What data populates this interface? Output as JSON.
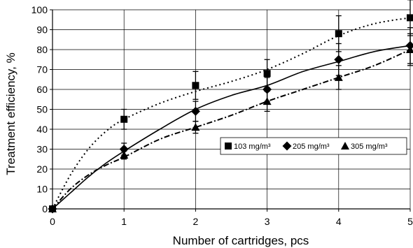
{
  "chart_data": {
    "type": "scatter",
    "title": "",
    "xlabel": "Number of cartridges, pcs",
    "ylabel": "Treatment efficiency, %",
    "xlim": [
      0,
      5
    ],
    "ylim": [
      0,
      100
    ],
    "x_ticks": [
      "0",
      "1",
      "2",
      "3",
      "4",
      "5"
    ],
    "y_ticks": [
      "0",
      "10",
      "20",
      "30",
      "40",
      "50",
      "60",
      "70",
      "80",
      "90",
      "100"
    ],
    "grid": true,
    "legend_position": "right",
    "x": [
      0,
      1,
      2,
      3,
      4,
      5
    ],
    "series": [
      {
        "name": "103 mg/m³",
        "marker": "square",
        "values": [
          0,
          45,
          62,
          68,
          88,
          96
        ],
        "error": [
          0,
          5,
          7,
          7,
          9,
          9
        ],
        "trend_style": "dotted",
        "trend": [
          [
            0,
            0
          ],
          [
            0.25,
            17
          ],
          [
            0.5,
            30
          ],
          [
            0.75,
            39
          ],
          [
            1,
            45
          ],
          [
            1.5,
            53
          ],
          [
            2,
            59
          ],
          [
            2.5,
            64
          ],
          [
            3,
            70
          ],
          [
            3.5,
            78
          ],
          [
            4,
            87
          ],
          [
            4.5,
            93
          ],
          [
            5,
            96
          ]
        ]
      },
      {
        "name": "205 mg/m³",
        "marker": "diamond",
        "values": [
          0,
          30,
          49,
          60,
          75,
          82
        ],
        "error": [
          0,
          3,
          5,
          6,
          8,
          9
        ],
        "trend_style": "solid",
        "trend": [
          [
            0,
            0
          ],
          [
            0.25,
            8
          ],
          [
            0.5,
            16
          ],
          [
            0.75,
            23
          ],
          [
            1,
            29
          ],
          [
            1.5,
            40
          ],
          [
            2,
            50
          ],
          [
            2.5,
            57
          ],
          [
            3,
            62
          ],
          [
            3.5,
            69
          ],
          [
            4,
            74
          ],
          [
            4.5,
            79
          ],
          [
            5,
            82
          ]
        ]
      },
      {
        "name": "305 mg/m³",
        "marker": "triangle",
        "values": [
          0,
          27,
          41,
          54,
          66,
          80
        ],
        "error": [
          0,
          2,
          3,
          5,
          6,
          8
        ],
        "trend_style": "dashdot",
        "trend": [
          [
            0,
            0
          ],
          [
            0.25,
            10
          ],
          [
            0.5,
            17
          ],
          [
            0.75,
            22
          ],
          [
            1,
            26
          ],
          [
            1.5,
            35
          ],
          [
            2,
            41
          ],
          [
            2.5,
            47
          ],
          [
            3,
            54
          ],
          [
            3.5,
            60
          ],
          [
            4,
            66
          ],
          [
            4.5,
            72
          ],
          [
            5,
            80
          ]
        ]
      }
    ]
  }
}
